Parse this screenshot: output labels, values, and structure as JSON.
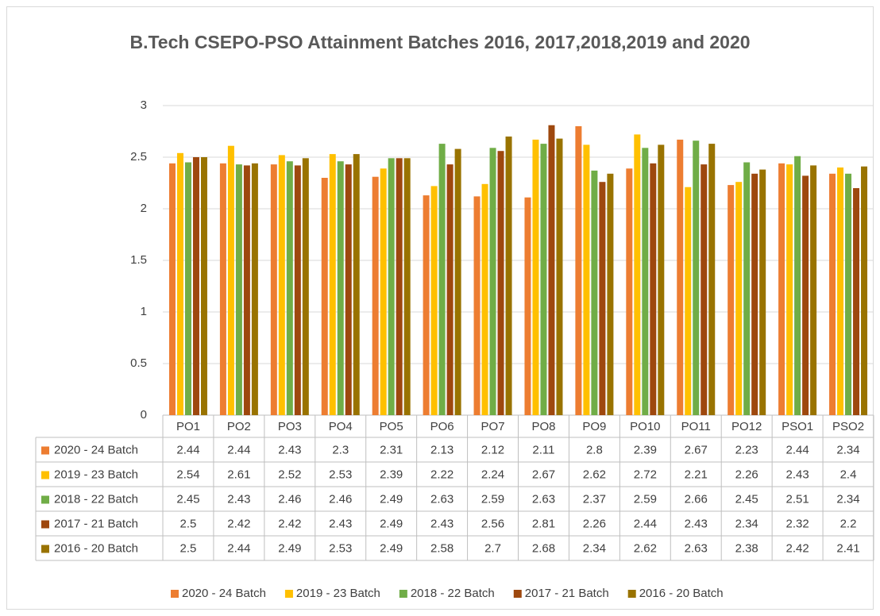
{
  "chart_data": {
    "type": "bar",
    "title": "B.Tech CSEPO-PSO Attainment Batches 2016, 2017,2018,2019 and 2020",
    "categories": [
      "PO1",
      "PO2",
      "PO3",
      "PO4",
      "PO5",
      "PO6",
      "PO7",
      "PO8",
      "PO9",
      "PO10",
      "PO11",
      "PO12",
      "PSO1",
      "PSO2"
    ],
    "series": [
      {
        "name": "2020 - 24 Batch",
        "color": "#ED7D31",
        "values": [
          2.44,
          2.44,
          2.43,
          2.3,
          2.31,
          2.13,
          2.12,
          2.11,
          2.8,
          2.39,
          2.67,
          2.23,
          2.44,
          2.34
        ]
      },
      {
        "name": "2019 - 23 Batch",
        "color": "#FFC000",
        "values": [
          2.54,
          2.61,
          2.52,
          2.53,
          2.39,
          2.22,
          2.24,
          2.67,
          2.62,
          2.72,
          2.21,
          2.26,
          2.43,
          2.4
        ]
      },
      {
        "name": "2018 - 22 Batch",
        "color": "#70AD47",
        "values": [
          2.45,
          2.43,
          2.46,
          2.46,
          2.49,
          2.63,
          2.59,
          2.63,
          2.37,
          2.59,
          2.66,
          2.45,
          2.51,
          2.34
        ]
      },
      {
        "name": "2017 - 21 Batch",
        "color": "#9E480E",
        "values": [
          2.5,
          2.42,
          2.42,
          2.43,
          2.49,
          2.43,
          2.56,
          2.81,
          2.26,
          2.44,
          2.43,
          2.34,
          2.32,
          2.2
        ]
      },
      {
        "name": "2016 - 20 Batch",
        "color": "#997300",
        "values": [
          2.5,
          2.44,
          2.49,
          2.53,
          2.49,
          2.58,
          2.7,
          2.68,
          2.34,
          2.62,
          2.63,
          2.38,
          2.42,
          2.41
        ]
      }
    ],
    "ylim": [
      0,
      3
    ],
    "yticks": [
      0,
      0.5,
      1,
      1.5,
      2,
      2.5,
      3
    ],
    "grid": true,
    "legend": "bottom"
  }
}
